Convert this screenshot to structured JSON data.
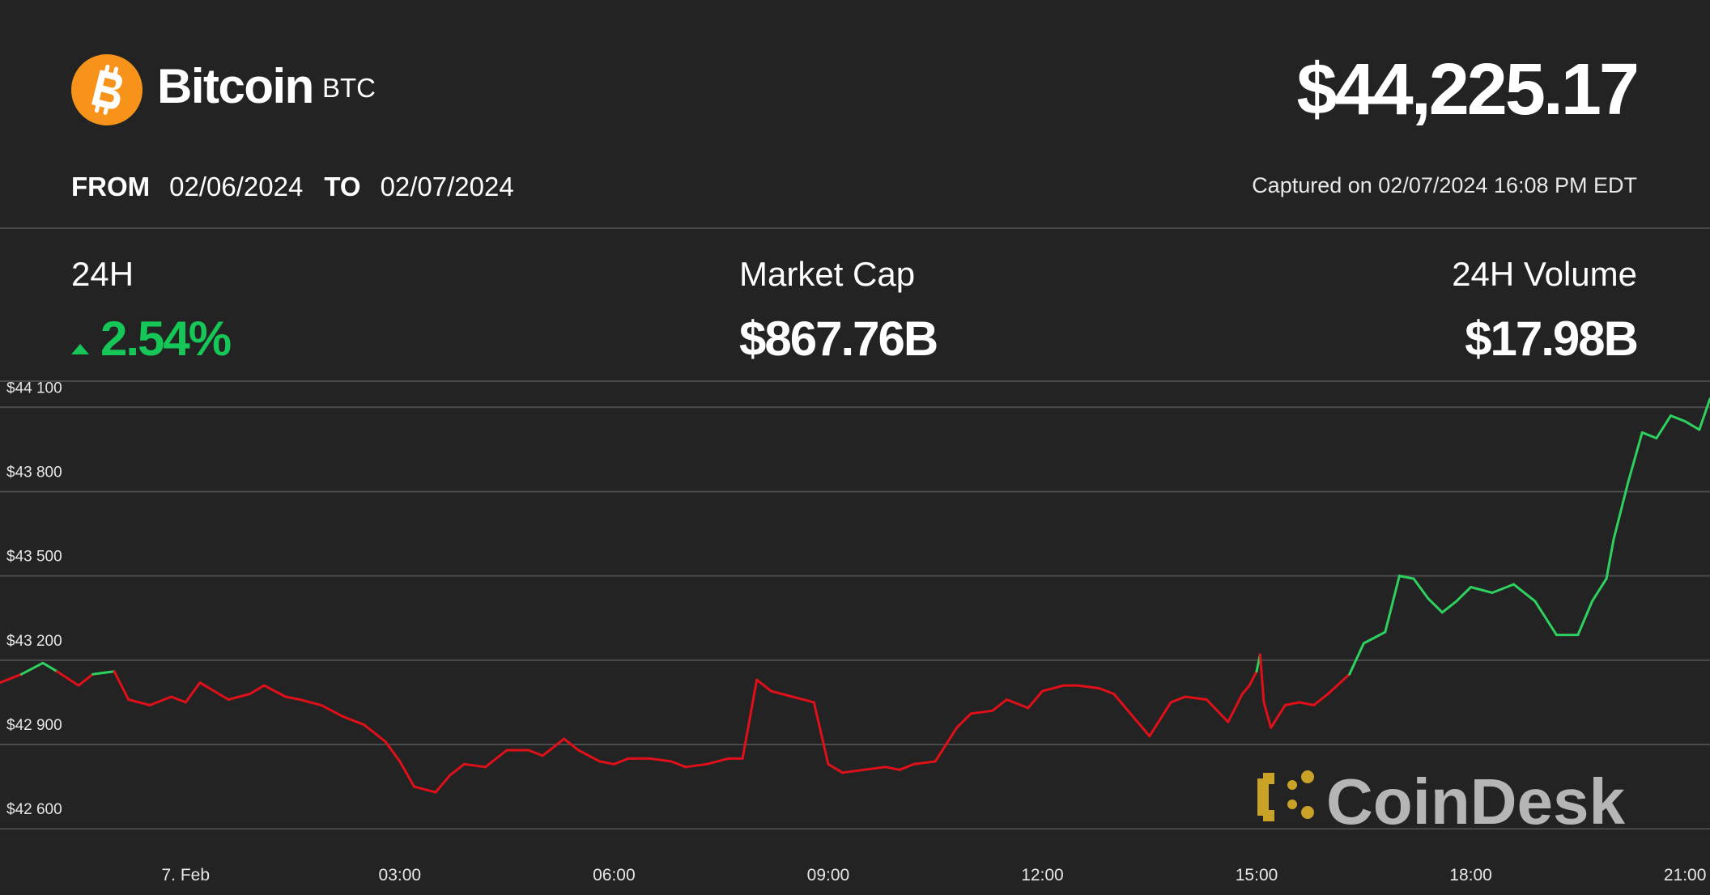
{
  "header": {
    "coin_name": "Bitcoin",
    "coin_ticker": "BTC",
    "price": "$44,225.17",
    "from_label": "FROM",
    "from_date": "02/06/2024",
    "to_label": "TO",
    "to_date": "02/07/2024",
    "captured": "Captured on 02/07/2024 16:08 PM EDT"
  },
  "stats": {
    "change_label": "24H",
    "change_value": "2.54%",
    "market_cap_label": "Market Cap",
    "market_cap_value": "$867.76B",
    "volume_label": "24H Volume",
    "volume_value": "$17.98B"
  },
  "watermark": "CoinDesk",
  "colors": {
    "background": "#232323",
    "bitcoin_orange": "#f7931a",
    "up_green": "#16c757",
    "line_up": "#2ed15f",
    "line_down": "#e0101a",
    "watermark_gold": "#c9a227"
  },
  "chart_data": {
    "type": "line",
    "title": "",
    "xlabel": "",
    "ylabel": "",
    "x_ticks": [
      "7. Feb",
      "03:00",
      "06:00",
      "09:00",
      "12:00",
      "15:00",
      "18:00",
      "21:00"
    ],
    "y_ticks": [
      "$44 100",
      "$43 800",
      "$43 500",
      "$43 200",
      "$42 900",
      "$42 600"
    ],
    "y_tick_values": [
      44100,
      43800,
      43500,
      43200,
      42900,
      42600
    ],
    "ylim": [
      42520,
      44190
    ],
    "xlim_hours": [
      -2.6,
      21.35
    ],
    "reference_price": 43150,
    "grid": "horizontal",
    "series": [
      {
        "x_hours": [
          -2.6,
          -2.3,
          -2.0,
          -1.8,
          -1.5,
          -1.3,
          -1.0,
          -0.8,
          -0.5,
          -0.2,
          0.0,
          0.2,
          0.6,
          0.9,
          1.1,
          1.4,
          1.6,
          1.9,
          2.2,
          2.5,
          2.8,
          3.0,
          3.2,
          3.5,
          3.7,
          3.9,
          4.2,
          4.5,
          4.8,
          5.0,
          5.3,
          5.5,
          5.8,
          6.0,
          6.2,
          6.5,
          6.8,
          7.0,
          7.3,
          7.6,
          7.8,
          8.0,
          8.2,
          8.5,
          8.8,
          9.0,
          9.2,
          9.5,
          9.8,
          10.0,
          10.2,
          10.5,
          10.8,
          11.0,
          11.3,
          11.5,
          11.8,
          12.0,
          12.3,
          12.5,
          12.8,
          13.0,
          13.3,
          13.5,
          13.8,
          14.0,
          14.3,
          14.6,
          14.8,
          14.9,
          15.0,
          15.05,
          15.1,
          15.2,
          15.4,
          15.6,
          15.8,
          16.0,
          16.3,
          16.5,
          16.8,
          17.0,
          17.2,
          17.4,
          17.6,
          17.8,
          18.0,
          18.3,
          18.6,
          18.9,
          19.2,
          19.5,
          19.7,
          19.9,
          20.0,
          20.2,
          20.4,
          20.6,
          20.8,
          21.0,
          21.2,
          21.35
        ],
        "y": [
          43120,
          43150,
          43190,
          43160,
          43110,
          43150,
          43160,
          43060,
          43040,
          43070,
          43050,
          43120,
          43060,
          43080,
          43110,
          43070,
          43060,
          43040,
          43000,
          42970,
          42910,
          42840,
          42750,
          42730,
          42790,
          42830,
          42820,
          42880,
          42880,
          42860,
          42920,
          42880,
          42840,
          42830,
          42850,
          42850,
          42840,
          42820,
          42830,
          42850,
          42850,
          43130,
          43090,
          43070,
          43050,
          42830,
          42800,
          42810,
          42820,
          42810,
          42830,
          42840,
          42960,
          43010,
          43020,
          43060,
          43030,
          43090,
          43110,
          43110,
          43100,
          43080,
          42990,
          42930,
          43050,
          43070,
          43060,
          42980,
          43080,
          43110,
          43160,
          43220,
          43050,
          42960,
          43040,
          43050,
          43040,
          43080,
          43150,
          43260,
          43300,
          43500,
          43490,
          43420,
          43370,
          43410,
          43460,
          43440,
          43470,
          43410,
          43290,
          43290,
          43410,
          43490,
          43630,
          43830,
          44010,
          43990,
          44070,
          44050,
          44020,
          44130
        ]
      }
    ]
  }
}
